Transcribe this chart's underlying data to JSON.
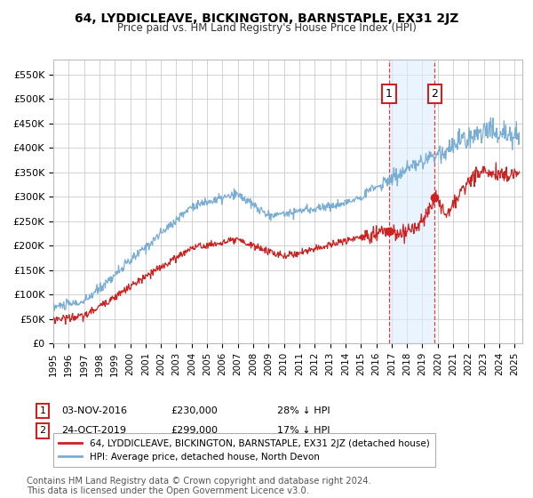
{
  "title": "64, LYDDICLEAVE, BICKINGTON, BARNSTAPLE, EX31 2JZ",
  "subtitle": "Price paid vs. HM Land Registry's House Price Index (HPI)",
  "legend_label_red": "64, LYDDICLEAVE, BICKINGTON, BARNSTAPLE, EX31 2JZ (detached house)",
  "legend_label_blue": "HPI: Average price, detached house, North Devon",
  "annotation1_date": "03-NOV-2016",
  "annotation1_price": "£230,000",
  "annotation1_hpi": "28% ↓ HPI",
  "annotation1_year": 2016.84,
  "annotation1_value": 230000,
  "annotation2_date": "24-OCT-2019",
  "annotation2_price": "£299,000",
  "annotation2_hpi": "17% ↓ HPI",
  "annotation2_year": 2019.81,
  "annotation2_value": 299000,
  "xmin": 1995,
  "xmax": 2025.5,
  "ymin": 0,
  "ymax": 580000,
  "yticks": [
    0,
    50000,
    100000,
    150000,
    200000,
    250000,
    300000,
    350000,
    400000,
    450000,
    500000,
    550000
  ],
  "background_color": "#ffffff",
  "grid_color": "#cccccc",
  "red_color": "#cc2222",
  "blue_color": "#7aadd4",
  "shade_color": "#ddeeff",
  "annotation_box_color": "#cc2222",
  "vline_color": "#cc2222",
  "footer_text": "Contains HM Land Registry data © Crown copyright and database right 2024.\nThis data is licensed under the Open Government Licence v3.0."
}
